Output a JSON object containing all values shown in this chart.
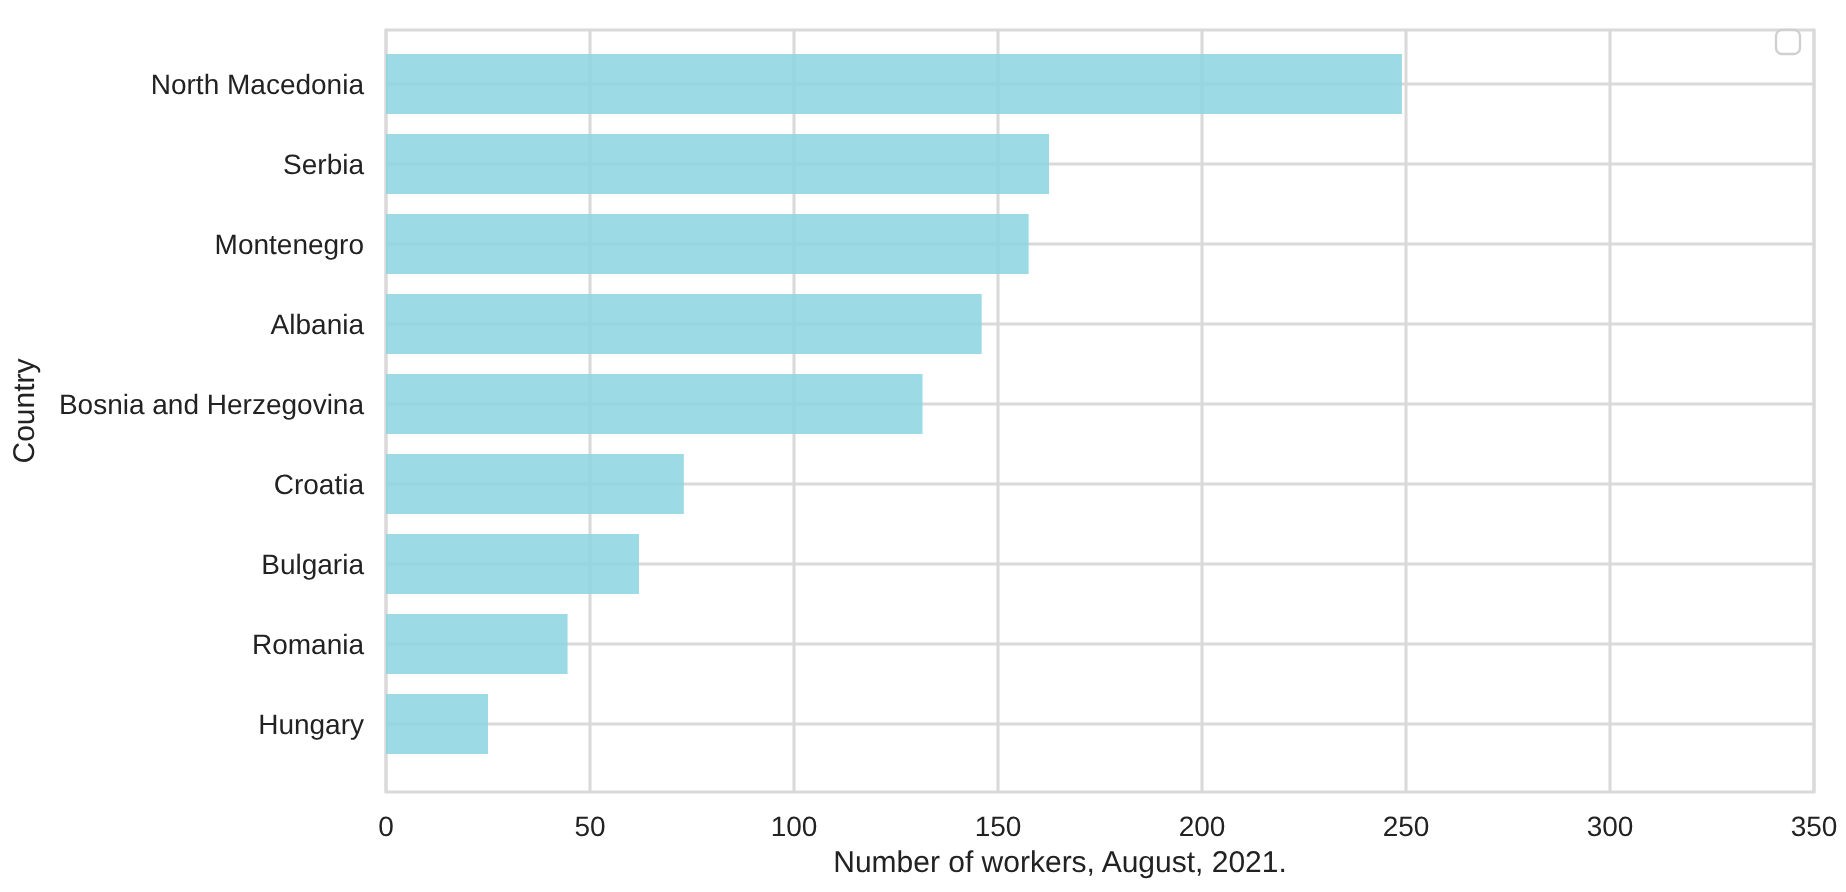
{
  "chart_data": {
    "type": "bar",
    "orientation": "horizontal",
    "categories": [
      "North Macedonia",
      "Serbia",
      "Montenegro",
      "Albania",
      "Bosnia and Herzegovina",
      "Croatia",
      "Bulgaria",
      "Romania",
      "Hungary"
    ],
    "values": [
      249,
      162.5,
      157.5,
      146,
      131.5,
      73,
      62,
      44.5,
      25
    ],
    "color": "#8bd3e2",
    "xlim": [
      0,
      350
    ],
    "xticks": [
      0,
      50,
      100,
      150,
      200,
      250,
      300,
      350
    ],
    "xlabel": "Number of workers, August, 2021.",
    "ylabel": "Country",
    "grid": true
  }
}
